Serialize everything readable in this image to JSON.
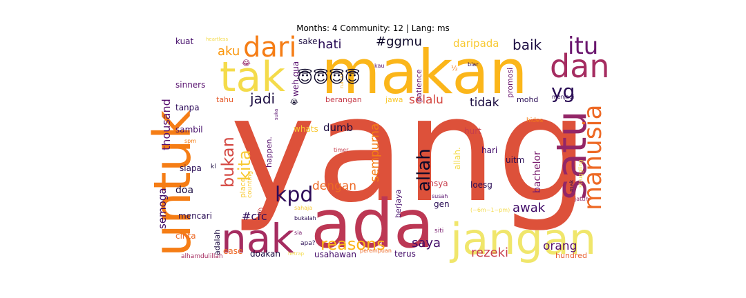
{
  "title": "Months: 4 Community: 12 | Lang: ms",
  "words": [
    {
      "text": "yang",
      "color": "#dd513a"
    },
    {
      "text": "untuk",
      "color": "#f57d15"
    },
    {
      "text": "makan",
      "color": "#fbb61a"
    },
    {
      "text": "ada",
      "color": "#bc3754"
    },
    {
      "text": "tak",
      "color": "#f4db4b"
    },
    {
      "text": "nak",
      "color": "#a52c60"
    },
    {
      "text": "jangan",
      "color": "#f0e66b"
    },
    {
      "text": "satu",
      "color": "#932667"
    },
    {
      "text": "dan",
      "color": "#a52c60"
    },
    {
      "text": "dari",
      "color": "#f57d15"
    },
    {
      "text": "manusia",
      "color": "#ed6925"
    },
    {
      "text": "itu",
      "color": "#6a176e"
    },
    {
      "text": "yg",
      "color": "#280b54"
    },
    {
      "text": "kpd",
      "color": "#2d0b59"
    },
    {
      "text": "bukan",
      "color": "#d44842"
    },
    {
      "text": "allah",
      "color": "#0d0829"
    },
    {
      "text": "kita",
      "color": "#f8c932"
    },
    {
      "text": "reasons",
      "color": "#fcb519"
    },
    {
      "text": "aku",
      "color": "#fa9407"
    },
    {
      "text": "hati",
      "color": "#280b54"
    },
    {
      "text": "#ggmu",
      "color": "#0d0829"
    },
    {
      "text": "baik",
      "color": "#1a0b40"
    },
    {
      "text": "jadi",
      "color": "#1a0b40"
    },
    {
      "text": "selalu",
      "color": "#d44842"
    },
    {
      "text": "tidak",
      "color": "#1a0b40"
    },
    {
      "text": "sempurna",
      "color": "#f57d15"
    },
    {
      "text": "dengan",
      "color": "#ed6925"
    },
    {
      "text": "awak",
      "color": "#3e0966"
    },
    {
      "text": "saya",
      "color": "#420a68"
    },
    {
      "text": "rezeki",
      "color": "#c73e4c"
    },
    {
      "text": "orang",
      "color": "#57106e"
    },
    {
      "text": "#cfc",
      "color": "#2d0b59"
    },
    {
      "text": "bachelor",
      "color": "#781c6d"
    },
    {
      "text": "thousand",
      "color": "#57106e"
    },
    {
      "text": "dumb",
      "color": "#1a0b40"
    },
    {
      "text": "semoga",
      "color": "#3e0966"
    },
    {
      "text": "daripada",
      "color": "#f8c932"
    },
    {
      "text": "sinners",
      "color": "#57106e"
    },
    {
      "text": "tanpa",
      "color": "#2d0b59"
    },
    {
      "text": "sambil",
      "color": "#420a68"
    },
    {
      "text": "siapa",
      "color": "#280b54"
    },
    {
      "text": "doa",
      "color": "#1a0b40"
    },
    {
      "text": "mencari",
      "color": "#280b54"
    },
    {
      "text": "cinta",
      "color": "#ed6925"
    },
    {
      "text": "kuat",
      "color": "#420a68"
    },
    {
      "text": "sake",
      "color": "#1a0b40"
    },
    {
      "text": "weh.gua",
      "color": "#57106e"
    },
    {
      "text": "tahu",
      "color": "#e65d2f"
    },
    {
      "text": "berangan",
      "color": "#c73e4c"
    },
    {
      "text": "jawa",
      "color": "#f8c932"
    },
    {
      "text": "hurt",
      "color": "#c73e4c"
    },
    {
      "text": "hari",
      "color": "#420a68"
    },
    {
      "text": "mohd",
      "color": "#280b54"
    },
    {
      "text": "promosi",
      "color": "#6a176e"
    },
    {
      "text": "patience",
      "color": "#6a176e"
    },
    {
      "text": "whats",
      "color": "#f8c932"
    },
    {
      "text": "happen.",
      "color": "#57106e"
    },
    {
      "text": "uitm",
      "color": "#280b54"
    },
    {
      "text": "loesg",
      "color": "#280b54"
    },
    {
      "text": "insya",
      "color": "#c73e4c"
    },
    {
      "text": "gen",
      "color": "#280b54"
    },
    {
      "text": "berjaya",
      "color": "#420a68"
    },
    {
      "text": "adalah",
      "color": "#1a0b40"
    },
    {
      "text": "doakan",
      "color": "#1a0b40"
    },
    {
      "text": "ease",
      "color": "#ed6925"
    },
    {
      "text": "usahawan",
      "color": "#420a68"
    },
    {
      "text": "terus",
      "color": "#420a68"
    },
    {
      "text": "hundred",
      "color": "#e65d2f"
    },
    {
      "text": "alhamdulillah",
      "color": "#a52c60"
    },
    {
      "text": "place.",
      "color": "#f8c932"
    },
    {
      "text": "counting",
      "color": "#f8c932"
    },
    {
      "text": "menjadi",
      "color": "#280b54"
    },
    {
      "text": "struggling",
      "color": "#f4db4b"
    },
    {
      "text": "hides",
      "color": "#f57d15"
    },
    {
      "text": "jatuh",
      "color": "#932667"
    },
    {
      "text": "mak",
      "color": "#280b54"
    },
    {
      "text": "susah",
      "color": "#57106e"
    },
    {
      "text": "siti",
      "color": "#781c6d"
    },
    {
      "text": "sahaja",
      "color": "#f8c932"
    },
    {
      "text": "bukalah",
      "color": "#280b54"
    },
    {
      "text": "perempuan",
      "color": "#ed6925"
    },
    {
      "text": "apa?",
      "color": "#280b54"
    },
    {
      "text": "sia",
      "color": "#781c6d"
    },
    {
      "text": "kl",
      "color": "#1a0b40"
    },
    {
      "text": "timer",
      "color": "#c73e4c"
    },
    {
      "text": "suka",
      "color": "#57106e"
    },
    {
      "text": "spm",
      "color": "#f57d15"
    },
    {
      "text": "biar",
      "color": "#280b54"
    },
    {
      "text": "kau",
      "color": "#57106e"
    },
    {
      "text": "rumah",
      "color": "#fcb519"
    },
    {
      "text": "½",
      "color": "#f57d15"
    },
    {
      "text": "heartless",
      "color": "#f4db4b"
    },
    {
      "text": "😂",
      "color": "#932667"
    },
    {
      "text": "😭",
      "color": "#0d0829"
    },
    {
      "text": "😢",
      "color": "#d44842"
    },
    {
      "text": "😇😇😇😇",
      "color": "#0d0829"
    },
    {
      "text": "(~6m~1~pm)",
      "color": "#f4db4b"
    },
    {
      "text": "allah.",
      "color": "#f4db4b"
    },
    {
      "text": "hetrap",
      "color": "#f4db4b"
    }
  ]
}
